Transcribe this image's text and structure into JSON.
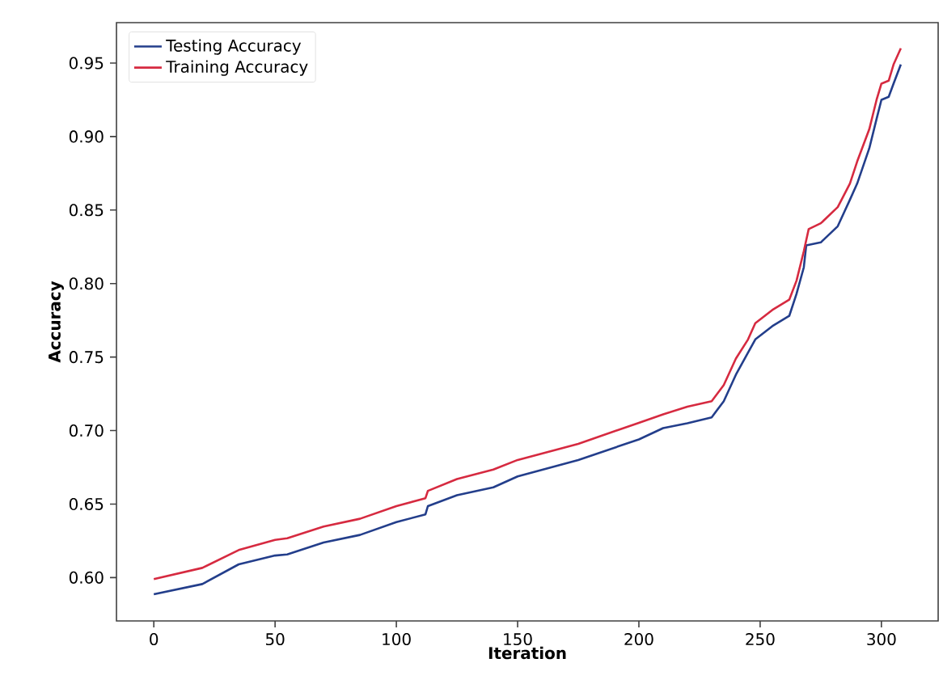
{
  "chart_data": {
    "type": "line",
    "xlabel": "Iteration",
    "ylabel": "Accuracy",
    "xlim": [
      -15.4,
      323.4
    ],
    "ylim": [
      0.5705,
      0.9775
    ],
    "xticks": [
      0,
      50,
      100,
      150,
      200,
      250,
      300
    ],
    "yticks": [
      {
        "value": 0.6,
        "label": "0.60"
      },
      {
        "value": 0.65,
        "label": "0.65"
      },
      {
        "value": 0.7,
        "label": "0.70"
      },
      {
        "value": 0.75,
        "label": "0.75"
      },
      {
        "value": 0.8,
        "label": "0.80"
      },
      {
        "value": 0.85,
        "label": "0.85"
      },
      {
        "value": 0.9,
        "label": "0.90"
      },
      {
        "value": 0.95,
        "label": "0.95"
      }
    ],
    "legend": "top left",
    "grid": false,
    "marker": "none",
    "line_style": "solid",
    "series": [
      {
        "name": "Testing Accuracy",
        "color": "#233e8b",
        "x": [
          0,
          20,
          35,
          50,
          55,
          70,
          85,
          100,
          112,
          113,
          125,
          140,
          150,
          175,
          200,
          210,
          220,
          230,
          235,
          240,
          245,
          248,
          255,
          262,
          265,
          268,
          269,
          275,
          282,
          287,
          290,
          295,
          298,
          300,
          303,
          305,
          308
        ],
        "values": [
          0.5887,
          0.5956,
          0.609,
          0.615,
          0.6157,
          0.6238,
          0.629,
          0.6377,
          0.643,
          0.6486,
          0.656,
          0.6614,
          0.6688,
          0.68,
          0.694,
          0.7017,
          0.705,
          0.709,
          0.72,
          0.738,
          0.753,
          0.762,
          0.771,
          0.778,
          0.793,
          0.811,
          0.826,
          0.828,
          0.839,
          0.857,
          0.868,
          0.892,
          0.912,
          0.925,
          0.927,
          0.936,
          0.949
        ]
      },
      {
        "name": "Training Accuracy",
        "color": "#d62a40",
        "x": [
          0,
          20,
          35,
          50,
          55,
          70,
          85,
          100,
          112,
          113,
          125,
          140,
          150,
          175,
          200,
          210,
          220,
          230,
          235,
          240,
          245,
          248,
          255,
          262,
          265,
          268,
          270,
          275,
          282,
          287,
          290,
          295,
          298,
          300,
          303,
          305,
          308
        ],
        "values": [
          0.599,
          0.6066,
          0.6187,
          0.6256,
          0.6267,
          0.6347,
          0.64,
          0.6486,
          0.654,
          0.659,
          0.667,
          0.6735,
          0.68,
          0.691,
          0.7053,
          0.711,
          0.7163,
          0.72,
          0.731,
          0.749,
          0.762,
          0.773,
          0.782,
          0.789,
          0.802,
          0.822,
          0.837,
          0.841,
          0.852,
          0.868,
          0.883,
          0.905,
          0.925,
          0.936,
          0.938,
          0.949,
          0.96
        ]
      }
    ]
  }
}
